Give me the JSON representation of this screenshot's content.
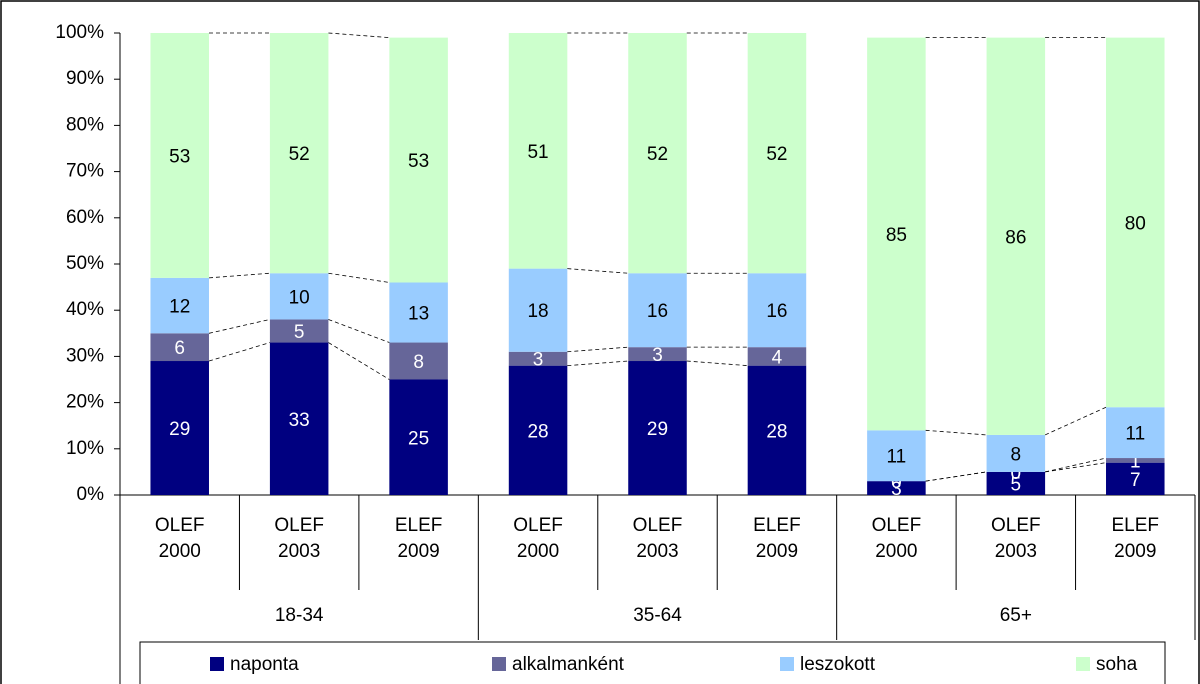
{
  "chart_data": {
    "type": "stacked_bar",
    "categories": [
      "OLEF 2000",
      "OLEF 2003",
      "ELEF 2009",
      "OLEF 2000",
      "OLEF 2003",
      "ELEF 2009",
      "OLEF 2000",
      "OLEF 2003",
      "ELEF 2009"
    ],
    "groups": [
      "18-34",
      "35-64",
      "65+"
    ],
    "series": [
      {
        "name": "naponta",
        "color": "#000080",
        "label_color": "#ffffff",
        "values": [
          29,
          33,
          25,
          28,
          29,
          28,
          3,
          5,
          7
        ]
      },
      {
        "name": "alkalmanként",
        "color": "#666699",
        "label_color": "#ffffff",
        "values": [
          6,
          5,
          8,
          3,
          3,
          4,
          0,
          0,
          1
        ]
      },
      {
        "name": "leszokott",
        "color": "#99ccff",
        "label_color": "#000000",
        "values": [
          12,
          10,
          13,
          18,
          16,
          16,
          11,
          8,
          11
        ]
      },
      {
        "name": "soha",
        "color": "#ccffcc",
        "label_color": "#000000",
        "values": [
          53,
          52,
          53,
          51,
          52,
          52,
          85,
          86,
          80
        ]
      }
    ],
    "ylim": [
      0,
      100
    ],
    "yticks": [
      {
        "value": 0,
        "label": "0%"
      },
      {
        "value": 10,
        "label": "10%"
      },
      {
        "value": 20,
        "label": "20%"
      },
      {
        "value": 30,
        "label": "30%"
      },
      {
        "value": 40,
        "label": "40%"
      },
      {
        "value": 50,
        "label": "50%"
      },
      {
        "value": 60,
        "label": "60%"
      },
      {
        "value": 70,
        "label": "70%"
      },
      {
        "value": 80,
        "label": "80%"
      },
      {
        "value": 90,
        "label": "90%"
      },
      {
        "value": 100,
        "label": "100%"
      }
    ],
    "legend": "bottom"
  }
}
